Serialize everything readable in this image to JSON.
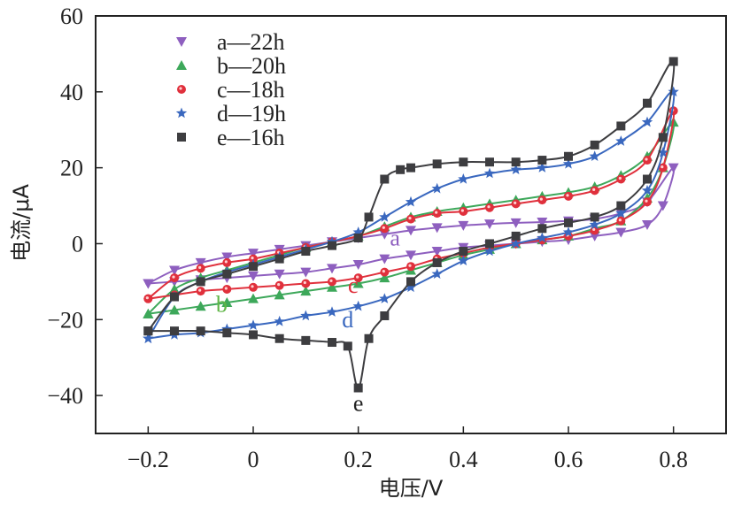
{
  "chart_data": {
    "type": "line",
    "title": "",
    "xlabel": "电压/V",
    "ylabel": "电流/μA",
    "xlim": [
      -0.3,
      0.9
    ],
    "ylim": [
      -50,
      60
    ],
    "xticks": [
      -0.2,
      0,
      0.2,
      0.4,
      0.6,
      0.8
    ],
    "xtick_labels": [
      "−0.2",
      "0",
      "0.2",
      "0.4",
      "0.6",
      "0.8"
    ],
    "yticks": [
      -40,
      -20,
      0,
      20,
      40,
      60
    ],
    "ytick_labels": [
      "−40",
      "−20",
      "0",
      "20",
      "40",
      "60"
    ],
    "grid": false,
    "legend_position": "top-left",
    "series": [
      {
        "name": "a—22h",
        "label": "a",
        "color": "#8e5fbf",
        "marker": "triangle-down",
        "forward": {
          "x": [
            -0.2,
            -0.15,
            -0.1,
            -0.05,
            0,
            0.05,
            0.1,
            0.15,
            0.2,
            0.25,
            0.3,
            0.35,
            0.4,
            0.45,
            0.5,
            0.55,
            0.6,
            0.65,
            0.7,
            0.75,
            0.8
          ],
          "y": [
            -10.5,
            -7,
            -5,
            -3.5,
            -2.5,
            -1.5,
            -0.5,
            0.5,
            1.5,
            2.5,
            3.5,
            4.2,
            4.8,
            5.2,
            5.5,
            5.7,
            6,
            6.5,
            8,
            11,
            20
          ]
        },
        "reverse": {
          "x": [
            0.8,
            0.78,
            0.75,
            0.7,
            0.65,
            0.6,
            0.55,
            0.5,
            0.45,
            0.4,
            0.35,
            0.3,
            0.25,
            0.2,
            0.15,
            0.1,
            0.05,
            0,
            -0.05,
            -0.1,
            -0.15,
            -0.2
          ],
          "y": [
            20,
            10,
            5,
            3,
            2,
            1,
            0.5,
            0,
            -0.5,
            -1,
            -2,
            -3,
            -4,
            -5.5,
            -6.5,
            -7.5,
            -8,
            -8.5,
            -9,
            -9.5,
            -10,
            -10.5
          ]
        }
      },
      {
        "name": "b—20h",
        "label": "b",
        "color": "#3da85a",
        "marker": "triangle-up",
        "forward": {
          "x": [
            -0.2,
            -0.15,
            -0.1,
            -0.05,
            0,
            0.05,
            0.1,
            0.15,
            0.2,
            0.25,
            0.3,
            0.35,
            0.4,
            0.45,
            0.5,
            0.55,
            0.6,
            0.65,
            0.7,
            0.75,
            0.8
          ],
          "y": [
            -18.5,
            -12,
            -9,
            -7,
            -5,
            -3,
            -1,
            0.5,
            2,
            4.5,
            7,
            8.5,
            9.5,
            10.5,
            11.5,
            12.5,
            13.5,
            15,
            18,
            23,
            32
          ]
        },
        "reverse": {
          "x": [
            0.8,
            0.78,
            0.75,
            0.7,
            0.65,
            0.6,
            0.55,
            0.5,
            0.45,
            0.4,
            0.35,
            0.3,
            0.25,
            0.2,
            0.15,
            0.1,
            0.05,
            0,
            -0.05,
            -0.1,
            -0.15,
            -0.2
          ],
          "y": [
            32,
            20,
            12,
            6,
            4,
            2,
            1,
            0,
            -1.5,
            -3,
            -5,
            -7,
            -9,
            -10.5,
            -11.5,
            -12.5,
            -13.5,
            -14.5,
            -15.5,
            -16.5,
            -17.5,
            -18.5
          ]
        }
      },
      {
        "name": "c—18h",
        "label": "c",
        "color": "#e0303c",
        "marker": "circle",
        "forward": {
          "x": [
            -0.2,
            -0.15,
            -0.1,
            -0.05,
            0,
            0.05,
            0.1,
            0.15,
            0.2,
            0.25,
            0.3,
            0.35,
            0.4,
            0.45,
            0.5,
            0.55,
            0.6,
            0.65,
            0.7,
            0.75,
            0.8
          ],
          "y": [
            -14.5,
            -9,
            -6.5,
            -5,
            -4,
            -2.5,
            -1,
            0.5,
            2,
            4,
            6.5,
            8,
            8.5,
            9.5,
            10.5,
            11.5,
            12.5,
            14,
            17,
            22,
            35
          ]
        },
        "reverse": {
          "x": [
            0.8,
            0.78,
            0.75,
            0.7,
            0.65,
            0.6,
            0.55,
            0.5,
            0.45,
            0.4,
            0.35,
            0.3,
            0.25,
            0.2,
            0.15,
            0.1,
            0.05,
            0,
            -0.05,
            -0.1,
            -0.15,
            -0.2
          ],
          "y": [
            35,
            20,
            11,
            6,
            3.5,
            2,
            1,
            0,
            -1,
            -2.5,
            -4,
            -6,
            -7.5,
            -9,
            -10,
            -10.5,
            -11,
            -11.5,
            -12,
            -12.5,
            -13.5,
            -14.5
          ]
        }
      },
      {
        "name": "d—19h",
        "label": "d",
        "color": "#3a68bf",
        "marker": "star",
        "forward": {
          "x": [
            -0.2,
            -0.15,
            -0.1,
            -0.05,
            0,
            0.05,
            0.1,
            0.15,
            0.2,
            0.25,
            0.3,
            0.35,
            0.4,
            0.45,
            0.5,
            0.55,
            0.6,
            0.65,
            0.7,
            0.75,
            0.8
          ],
          "y": [
            -25,
            -14,
            -10,
            -7.5,
            -5.5,
            -3.5,
            -1.5,
            0.5,
            3,
            7,
            11,
            14.5,
            17,
            18.5,
            19.5,
            20,
            21,
            23,
            27,
            32,
            40
          ]
        },
        "reverse": {
          "x": [
            0.8,
            0.78,
            0.75,
            0.7,
            0.65,
            0.6,
            0.55,
            0.5,
            0.45,
            0.4,
            0.35,
            0.3,
            0.25,
            0.2,
            0.15,
            0.1,
            0.05,
            0,
            -0.05,
            -0.1,
            -0.15,
            -0.2
          ],
          "y": [
            40,
            24,
            14,
            8,
            5,
            3,
            1.5,
            0,
            -2,
            -4.5,
            -8,
            -11.5,
            -14.5,
            -16.5,
            -18,
            -19,
            -20.5,
            -21.5,
            -22.5,
            -23.5,
            -24,
            -25
          ]
        }
      },
      {
        "name": "e—16h",
        "label": "e",
        "color": "#3d3d40",
        "marker": "square",
        "forward": {
          "x": [
            -0.2,
            -0.15,
            -0.1,
            -0.05,
            0,
            0.05,
            0.1,
            0.15,
            0.2,
            0.22,
            0.25,
            0.28,
            0.3,
            0.35,
            0.4,
            0.45,
            0.5,
            0.55,
            0.6,
            0.65,
            0.7,
            0.75,
            0.8
          ],
          "y": [
            -23,
            -14,
            -10,
            -8,
            -6,
            -4,
            -2,
            -0.5,
            1.5,
            7,
            17,
            19.5,
            20,
            21,
            21.5,
            21.5,
            21.5,
            22,
            23,
            26,
            31,
            37,
            48
          ]
        },
        "reverse": {
          "x": [
            0.8,
            0.78,
            0.75,
            0.7,
            0.65,
            0.6,
            0.55,
            0.5,
            0.45,
            0.4,
            0.35,
            0.3,
            0.25,
            0.22,
            0.2,
            0.18,
            0.15,
            0.1,
            0.05,
            0,
            -0.05,
            -0.1,
            -0.15,
            -0.2
          ],
          "y": [
            48,
            28,
            17,
            10,
            7,
            5.5,
            4,
            2,
            0,
            -2,
            -5,
            -10,
            -19,
            -25,
            -38,
            -27,
            -26,
            -25.5,
            -25,
            -24,
            -23.5,
            -23,
            -23,
            -23
          ]
        }
      }
    ],
    "annotations": [
      {
        "text": "a",
        "x": 0.27,
        "y": -0.5,
        "color": "#8e5fbf"
      },
      {
        "text": "c",
        "x": 0.19,
        "y": -13,
        "color": "#e0303c"
      },
      {
        "text": "b",
        "x": -0.06,
        "y": -18,
        "color": "#5fb547"
      },
      {
        "text": "d",
        "x": 0.18,
        "y": -22,
        "color": "#3a68bf"
      },
      {
        "text": "e",
        "x": 0.2,
        "y": -44,
        "color": "#222222"
      }
    ]
  }
}
